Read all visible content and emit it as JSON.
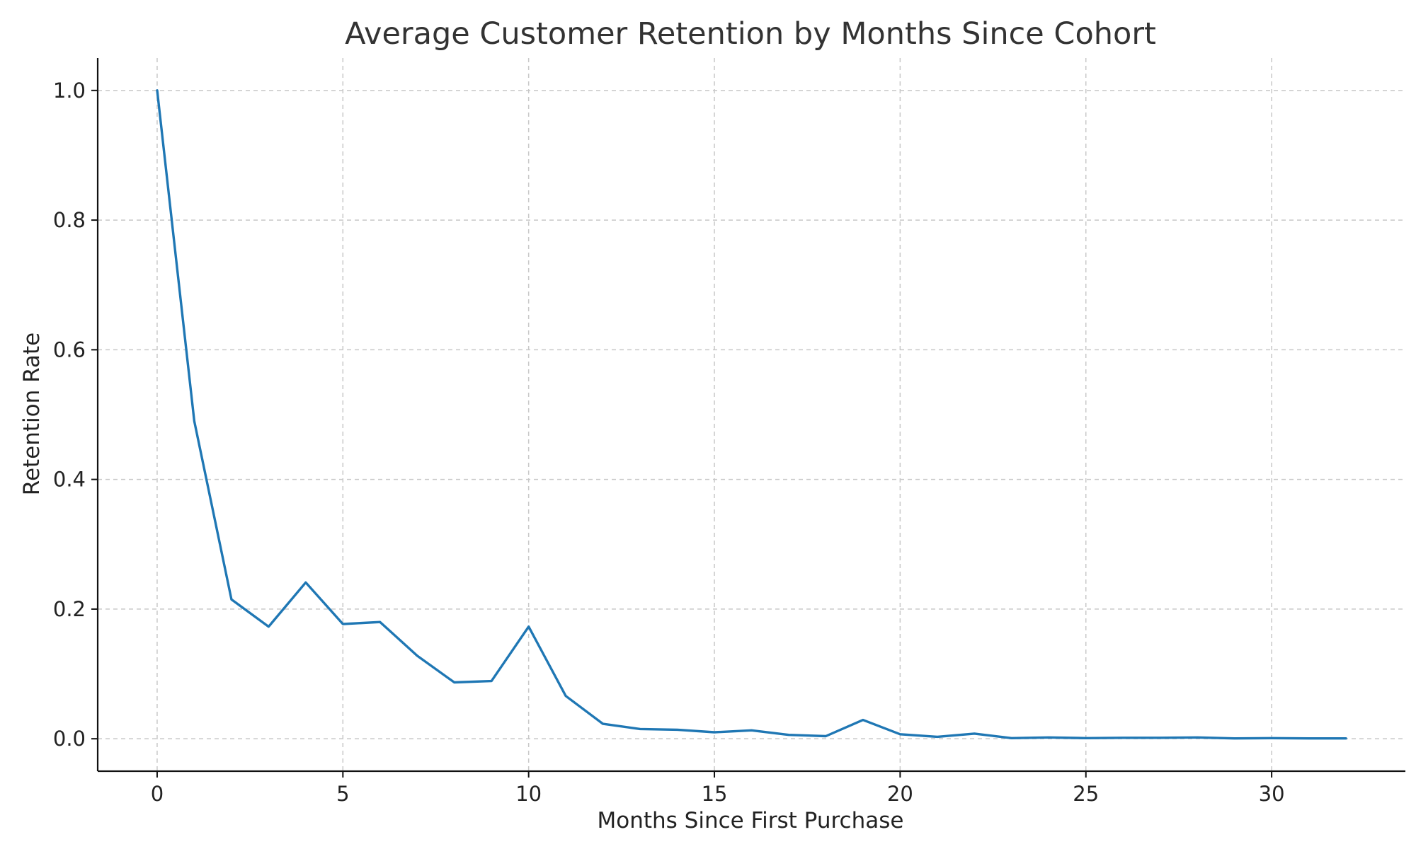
{
  "chart_data": {
    "type": "line",
    "title": "Average Customer Retention by Months Since Cohort",
    "xlabel": "Months Since First Purchase",
    "ylabel": "Retention Rate",
    "xlim": [
      -1.6,
      33.6
    ],
    "ylim": [
      -0.05,
      1.05
    ],
    "xticks": [
      0,
      5,
      10,
      15,
      20,
      25,
      30
    ],
    "yticks": [
      0.0,
      0.2,
      0.4,
      0.6,
      0.8,
      1.0
    ],
    "xtick_labels": [
      "0",
      "5",
      "10",
      "15",
      "20",
      "25",
      "30"
    ],
    "ytick_labels": [
      "0.0",
      "0.2",
      "0.4",
      "0.6",
      "0.8",
      "1.0"
    ],
    "grid": true,
    "series": [
      {
        "color": "#1f77b4",
        "x": [
          0,
          1,
          2,
          3,
          4,
          5,
          6,
          7,
          8,
          9,
          10,
          11,
          12,
          13,
          14,
          15,
          16,
          17,
          18,
          19,
          20,
          21,
          22,
          23,
          24,
          25,
          26,
          27,
          28,
          29,
          30,
          31,
          32
        ],
        "y": [
          1.0,
          0.49,
          0.215,
          0.173,
          0.241,
          0.177,
          0.18,
          0.128,
          0.087,
          0.089,
          0.173,
          0.066,
          0.023,
          0.015,
          0.014,
          0.01,
          0.013,
          0.006,
          0.004,
          0.029,
          0.007,
          0.003,
          0.008,
          0.001,
          0.002,
          0.001,
          0.0015,
          0.0015,
          0.002,
          0.0005,
          0.001,
          0.0005,
          0.0005
        ]
      }
    ]
  }
}
